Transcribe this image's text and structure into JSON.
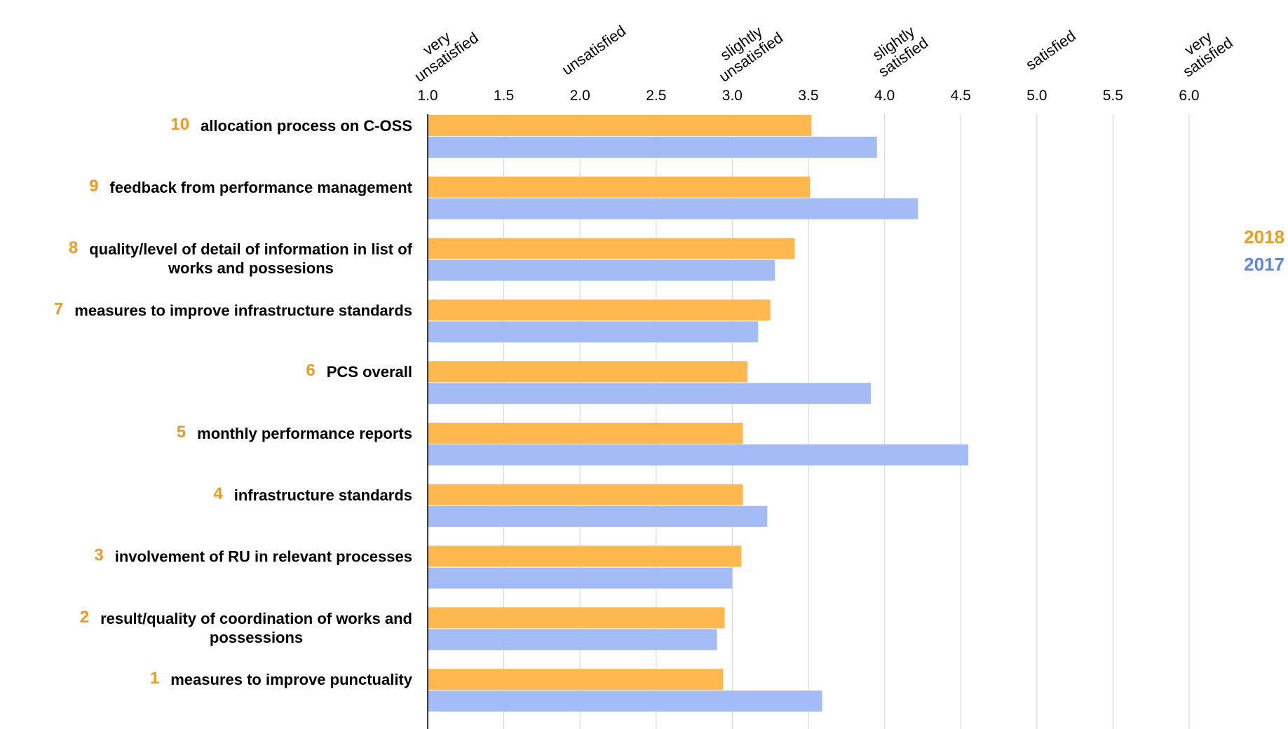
{
  "chart_data": {
    "type": "bar",
    "orientation": "horizontal",
    "title": "",
    "xlabel": "",
    "ylabel": "",
    "xlim": [
      1.0,
      6.0
    ],
    "x_ticks": [
      "1.0",
      "1.5",
      "2.0",
      "2.5",
      "3.0",
      "3.5",
      "4.0",
      "4.5",
      "5.0",
      "5.5",
      "6.0"
    ],
    "scale_labels": [
      {
        "value": 1.0,
        "lines": [
          "very",
          "unsatisfied"
        ]
      },
      {
        "value": 2.0,
        "lines": [
          "unsatisfied"
        ]
      },
      {
        "value": 3.0,
        "lines": [
          "slightly",
          "unsatisfied"
        ]
      },
      {
        "value": 4.0,
        "lines": [
          "slightly",
          "satisfied"
        ]
      },
      {
        "value": 5.0,
        "lines": [
          "satisfied"
        ]
      },
      {
        "value": 6.0,
        "lines": [
          "very",
          "satisfied"
        ]
      }
    ],
    "grid": "vertical",
    "legend_position": "right",
    "colors": {
      "2018": "#ffb84d",
      "2017": "#a4bcf5",
      "rank": "#f29a1e",
      "legend2018": "#f29a1e",
      "legend2017": "#5b87e6",
      "grid": "#d9d9d9"
    },
    "categories": [
      {
        "rank": "10",
        "lines": [
          "allocation process on C-OSS"
        ]
      },
      {
        "rank": "9",
        "lines": [
          "feedback from performance management"
        ]
      },
      {
        "rank": "8",
        "lines": [
          "quality/level of detail of information in list of",
          "works and possesions"
        ]
      },
      {
        "rank": "7",
        "lines": [
          "measures to improve infrastructure standards"
        ]
      },
      {
        "rank": "6",
        "lines": [
          "PCS overall"
        ]
      },
      {
        "rank": "5",
        "lines": [
          "monthly performance reports"
        ]
      },
      {
        "rank": "4",
        "lines": [
          "infrastructure standards"
        ]
      },
      {
        "rank": "3",
        "lines": [
          "involvement of RU in relevant processes"
        ]
      },
      {
        "rank": "2",
        "lines": [
          "result/quality of coordination of works and",
          "possessions"
        ]
      },
      {
        "rank": "1",
        "lines": [
          "measures to improve punctuality"
        ]
      }
    ],
    "series": [
      {
        "name": "2018",
        "values": [
          3.52,
          3.51,
          3.41,
          3.25,
          3.1,
          3.07,
          3.07,
          3.06,
          2.95,
          2.94
        ]
      },
      {
        "name": "2017",
        "values": [
          3.95,
          4.22,
          3.28,
          3.17,
          3.91,
          4.55,
          3.23,
          3.0,
          2.9,
          3.59
        ]
      }
    ]
  }
}
